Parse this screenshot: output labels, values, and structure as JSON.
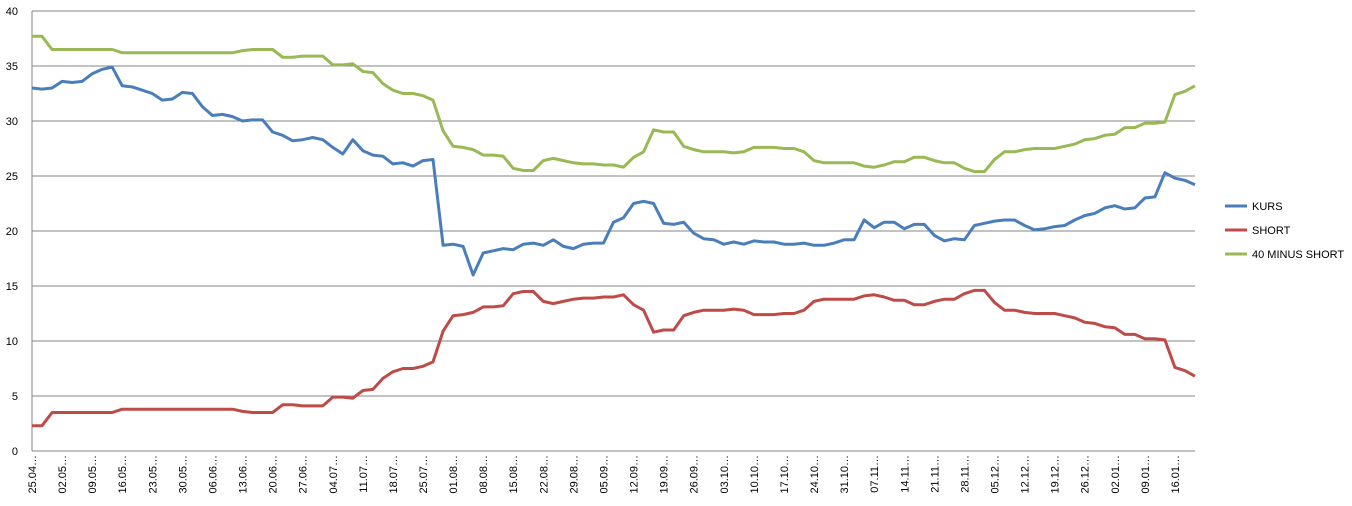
{
  "chart_data": {
    "type": "line",
    "categories": [
      "25.04…",
      null,
      null,
      "02.05…",
      null,
      null,
      "09.05…",
      null,
      null,
      "16.05…",
      null,
      null,
      "23.05…",
      null,
      null,
      "30.05…",
      null,
      null,
      "06.06…",
      null,
      null,
      "13.06…",
      null,
      null,
      "20.06…",
      null,
      null,
      "27.06…",
      null,
      null,
      "04.07…",
      null,
      null,
      "11.07…",
      null,
      null,
      "18.07…",
      null,
      null,
      "25.07…",
      null,
      null,
      "01.08…",
      null,
      null,
      "08.08…",
      null,
      null,
      "15.08…",
      null,
      null,
      "22.08…",
      null,
      null,
      "29.08…",
      null,
      null,
      "05.09…",
      null,
      null,
      "12.09…",
      null,
      null,
      "19.09…",
      null,
      null,
      "26.09…",
      null,
      null,
      "03.10…",
      null,
      null,
      "10.10…",
      null,
      null,
      "17.10…",
      null,
      null,
      "24.10…",
      null,
      null,
      "31.10…",
      null,
      null,
      "07.11…",
      null,
      null,
      "14.11…",
      null,
      null,
      "21.11…",
      null,
      null,
      "28.11…",
      null,
      null,
      "05.12…",
      null,
      null,
      "12.12…",
      null,
      null,
      "19.12…",
      null,
      null,
      "26.12…",
      null,
      null,
      "02.01…",
      null,
      null,
      "09.01…",
      null,
      null,
      "16.01…",
      null,
      null
    ],
    "series": [
      {
        "name": "KURS",
        "color": "#4a7ebb",
        "values": [
          33.0,
          32.9,
          33.0,
          33.6,
          33.5,
          33.6,
          34.3,
          34.7,
          34.9,
          33.2,
          33.1,
          32.8,
          32.5,
          31.9,
          32.0,
          32.6,
          32.5,
          31.3,
          30.5,
          30.6,
          30.4,
          30.0,
          30.1,
          30.1,
          29.0,
          28.7,
          28.2,
          28.3,
          28.5,
          28.3,
          27.6,
          27.0,
          28.3,
          27.3,
          26.9,
          26.8,
          26.1,
          26.2,
          25.9,
          26.4,
          26.5,
          18.7,
          18.8,
          18.6,
          16.0,
          18.0,
          18.2,
          18.4,
          18.3,
          18.8,
          18.9,
          18.7,
          19.2,
          18.6,
          18.4,
          18.8,
          18.9,
          18.9,
          20.8,
          21.2,
          22.5,
          22.7,
          22.5,
          20.7,
          20.6,
          20.8,
          19.8,
          19.3,
          19.2,
          18.8,
          19.0,
          18.8,
          19.1,
          19.0,
          19.0,
          18.8,
          18.8,
          18.9,
          18.7,
          18.7,
          18.9,
          19.2,
          19.2,
          21.0,
          20.3,
          20.8,
          20.8,
          20.2,
          20.6,
          20.6,
          19.6,
          19.1,
          19.3,
          19.2,
          20.5,
          20.7,
          20.9,
          21.0,
          21.0,
          20.5,
          20.1,
          20.2,
          20.4,
          20.5,
          21.0,
          21.4,
          21.6,
          22.1,
          22.3,
          22.0,
          22.1,
          23.0,
          23.1,
          25.3,
          24.8,
          24.6,
          24.2
        ]
      },
      {
        "name": "SHORT",
        "color": "#be4b48",
        "values": [
          2.3,
          2.3,
          3.5,
          3.5,
          3.5,
          3.5,
          3.5,
          3.5,
          3.5,
          3.8,
          3.8,
          3.8,
          3.8,
          3.8,
          3.8,
          3.8,
          3.8,
          3.8,
          3.8,
          3.8,
          3.8,
          3.6,
          3.5,
          3.5,
          3.5,
          4.2,
          4.2,
          4.1,
          4.1,
          4.1,
          4.9,
          4.9,
          4.8,
          5.5,
          5.6,
          6.6,
          7.2,
          7.5,
          7.5,
          7.7,
          8.1,
          10.9,
          12.3,
          12.4,
          12.6,
          13.1,
          13.1,
          13.2,
          14.3,
          14.5,
          14.5,
          13.6,
          13.4,
          13.6,
          13.8,
          13.9,
          13.9,
          14.0,
          14.0,
          14.2,
          13.3,
          12.8,
          10.8,
          11.0,
          11.0,
          12.3,
          12.6,
          12.8,
          12.8,
          12.8,
          12.9,
          12.8,
          12.4,
          12.4,
          12.4,
          12.5,
          12.5,
          12.8,
          13.6,
          13.8,
          13.8,
          13.8,
          13.8,
          14.1,
          14.2,
          14.0,
          13.7,
          13.7,
          13.3,
          13.3,
          13.6,
          13.8,
          13.8,
          14.3,
          14.6,
          14.6,
          13.5,
          12.8,
          12.8,
          12.6,
          12.5,
          12.5,
          12.5,
          12.3,
          12.1,
          11.7,
          11.6,
          11.3,
          11.2,
          10.6,
          10.6,
          10.2,
          10.2,
          10.1,
          7.6,
          7.3,
          6.8
        ]
      },
      {
        "name": "40 MINUS SHORT",
        "color": "#98b954",
        "values": [
          37.7,
          37.7,
          36.5,
          36.5,
          36.5,
          36.5,
          36.5,
          36.5,
          36.5,
          36.2,
          36.2,
          36.2,
          36.2,
          36.2,
          36.2,
          36.2,
          36.2,
          36.2,
          36.2,
          36.2,
          36.2,
          36.4,
          36.5,
          36.5,
          36.5,
          35.8,
          35.8,
          35.9,
          35.9,
          35.9,
          35.1,
          35.1,
          35.2,
          34.5,
          34.4,
          33.4,
          32.8,
          32.5,
          32.5,
          32.3,
          31.9,
          29.1,
          27.7,
          27.6,
          27.4,
          26.9,
          26.9,
          26.8,
          25.7,
          25.5,
          25.5,
          26.4,
          26.6,
          26.4,
          26.2,
          26.1,
          26.1,
          26.0,
          26.0,
          25.8,
          26.7,
          27.2,
          29.2,
          29.0,
          29.0,
          27.7,
          27.4,
          27.2,
          27.2,
          27.2,
          27.1,
          27.2,
          27.6,
          27.6,
          27.6,
          27.5,
          27.5,
          27.2,
          26.4,
          26.2,
          26.2,
          26.2,
          26.2,
          25.9,
          25.8,
          26.0,
          26.3,
          26.3,
          26.7,
          26.7,
          26.4,
          26.2,
          26.2,
          25.7,
          25.4,
          25.4,
          26.5,
          27.2,
          27.2,
          27.4,
          27.5,
          27.5,
          27.5,
          27.7,
          27.9,
          28.3,
          28.4,
          28.7,
          28.8,
          29.4,
          29.4,
          29.8,
          29.8,
          29.9,
          32.4,
          32.7,
          33.2
        ]
      }
    ],
    "ylim": [
      0,
      40
    ],
    "yticks": [
      0,
      5,
      10,
      15,
      20,
      25,
      30,
      35,
      40
    ],
    "grid": true,
    "legend": "right"
  }
}
